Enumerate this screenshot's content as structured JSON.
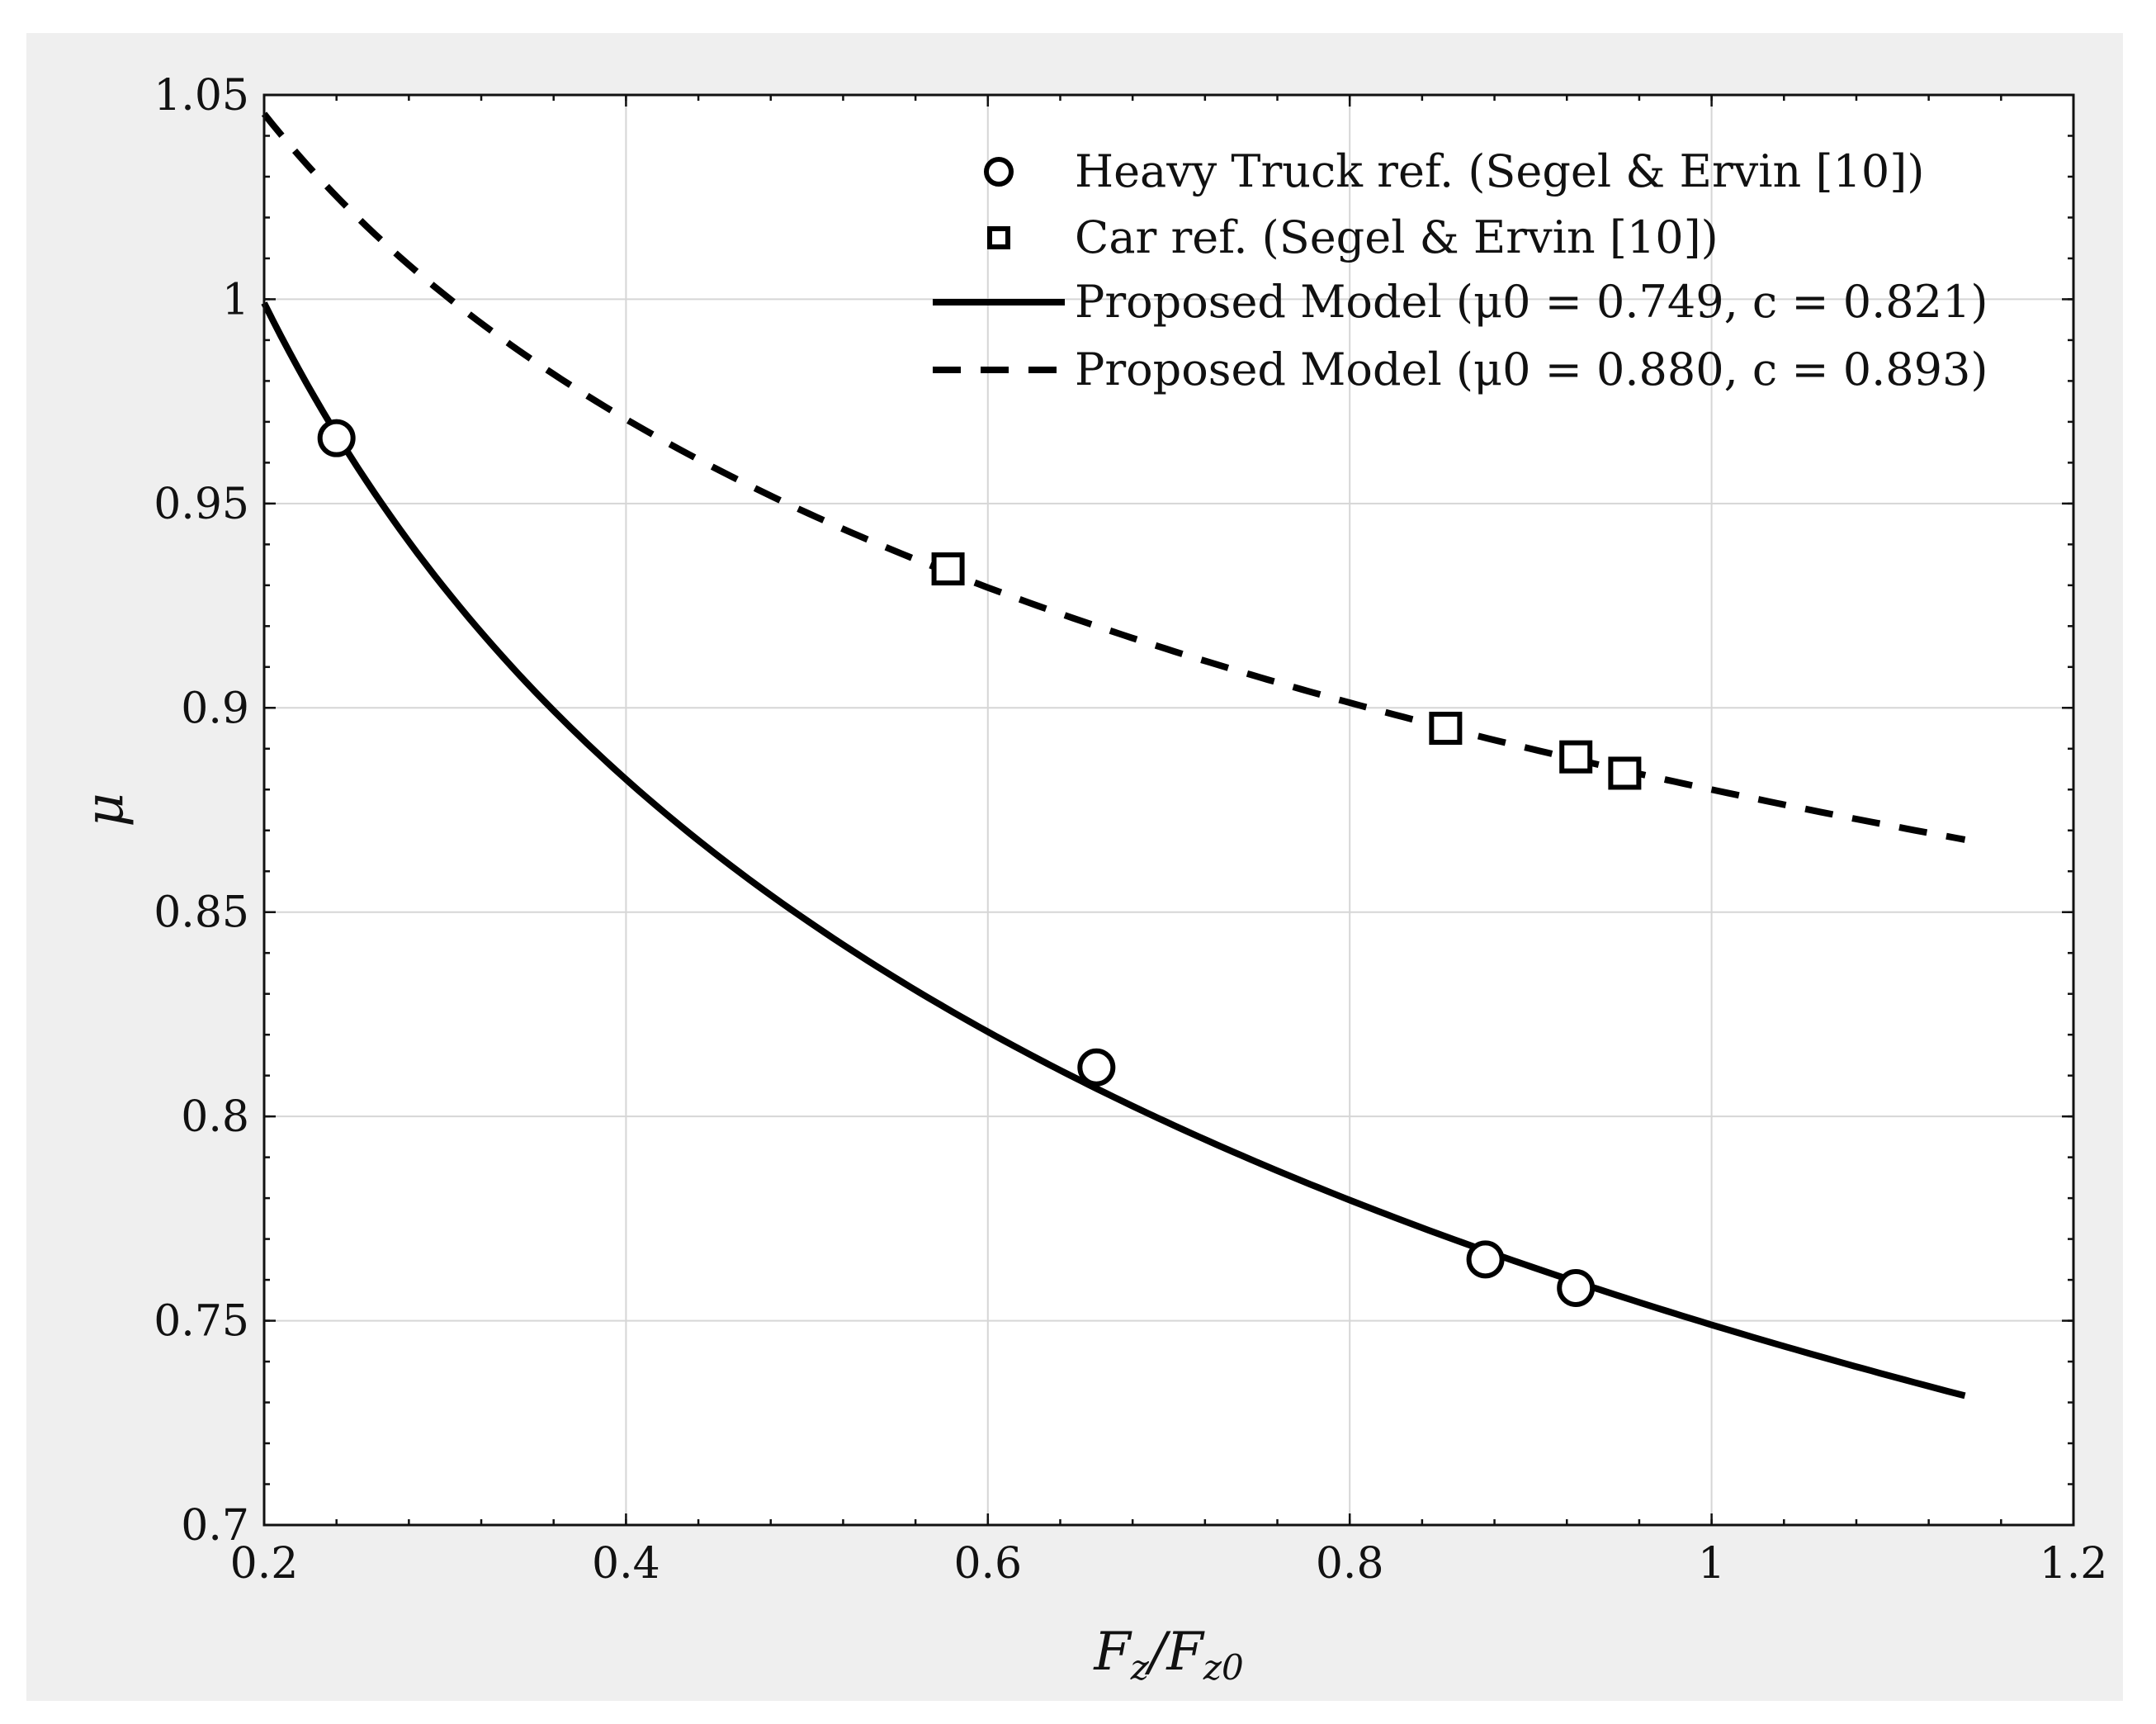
{
  "chart_data": {
    "type": "scatter",
    "xlabel": "F_z/F_z0",
    "ylabel": "μ",
    "xlim": [
      0.2,
      1.2
    ],
    "ylim": [
      0.7,
      1.05
    ],
    "xticks": [
      0.2,
      0.4,
      0.6,
      0.8,
      1.0,
      1.2
    ],
    "xtick_labels": [
      "0.2",
      "0.4",
      "0.6",
      "0.8",
      "1",
      "1.2"
    ],
    "yticks": [
      0.7,
      0.75,
      0.8,
      0.85,
      0.9,
      0.95,
      1.0,
      1.05
    ],
    "ytick_labels": [
      "0.7",
      "0.75",
      "0.8",
      "0.85",
      "0.9",
      "0.95",
      "1",
      "1.05"
    ],
    "grid": true,
    "legend_position": "top-right",
    "series": [
      {
        "name": "Heavy Truck ref. (Segel & Ervin [10])",
        "kind": "scatter",
        "marker": "circle",
        "points": [
          [
            0.24,
            0.966
          ],
          [
            0.66,
            0.812
          ],
          [
            0.875,
            0.765
          ],
          [
            0.925,
            0.758
          ]
        ]
      },
      {
        "name": "Car ref. (Segel & Ervin [10])",
        "kind": "scatter",
        "marker": "square",
        "points": [
          [
            0.578,
            0.934
          ],
          [
            0.853,
            0.895
          ],
          [
            0.925,
            0.888
          ],
          [
            0.952,
            0.884
          ]
        ]
      },
      {
        "name": "Proposed Model (μ0 = 0.749,  c = 0.821)",
        "kind": "line",
        "style": "solid",
        "mu0": 0.749,
        "c": 0.821,
        "x_range": [
          0.2,
          1.14
        ]
      },
      {
        "name": "Proposed Model (μ0 = 0.880,  c = 0.893)",
        "kind": "line",
        "style": "dashed",
        "mu0": 0.88,
        "c": 0.893,
        "x_range": [
          0.2,
          1.14
        ]
      }
    ]
  }
}
